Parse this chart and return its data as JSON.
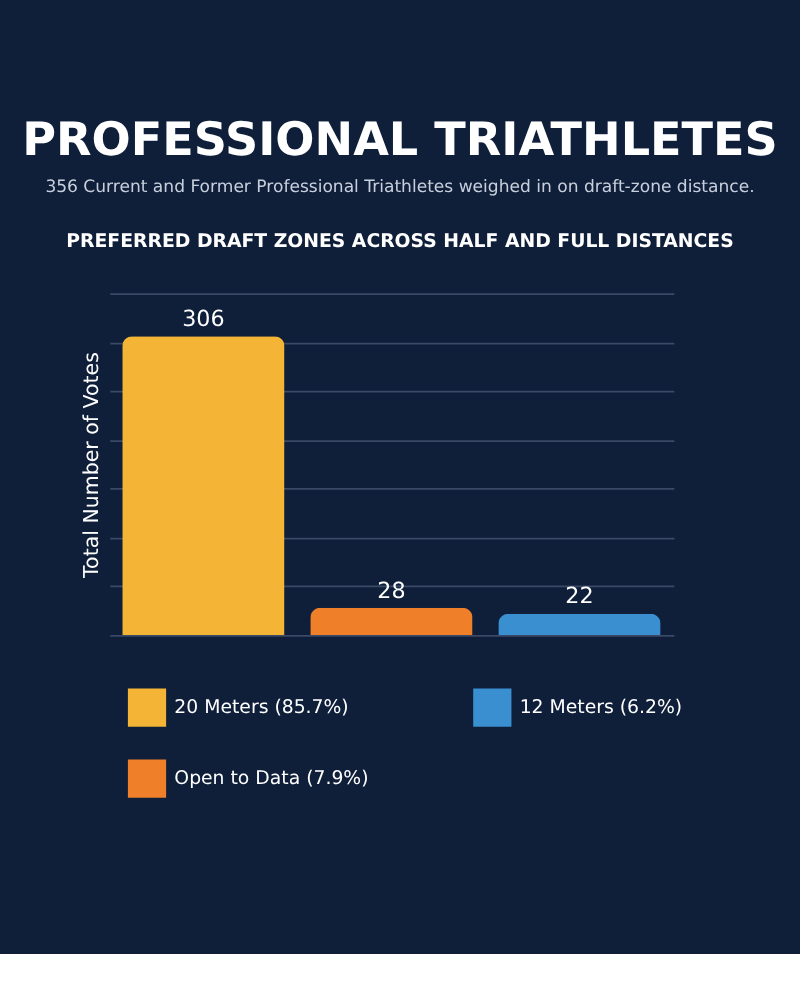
{
  "chart_data": {
    "type": "bar",
    "title": "PROFESSIONAL TRIATHLETES",
    "subtitle": "356 Current and Former Professional Triathletes weighed in on draft-zone distance.",
    "annotations": [
      "PREFERRED DRAFT ZONES ACROSS HALF AND FULL DISTANCES"
    ],
    "ylabel": "Total Number of Votes",
    "categories": [
      null,
      null,
      null
    ],
    "series": [
      {
        "name": "20 Meters (85.7%)",
        "color": "#f4b536",
        "values": [
          306,
          null,
          null
        ]
      },
      {
        "name": "12 Meters (6.2%)",
        "color": "#3a8fd0",
        "values": [
          null,
          null,
          22
        ]
      },
      {
        "name": "Open to Data (7.9%)",
        "color": "#f07f2a",
        "values": [
          null,
          28,
          null
        ]
      }
    ],
    "ylim": [
      0,
      350
    ],
    "yticks": [
      {
        "value": 0,
        "label": null
      },
      {
        "value": 50,
        "label": null
      },
      {
        "value": 100,
        "label": null
      },
      {
        "value": 150,
        "label": null
      },
      {
        "value": 200,
        "label": null
      },
      {
        "value": 250,
        "label": null
      },
      {
        "value": 300,
        "label": null
      },
      {
        "value": 350,
        "label": null
      }
    ],
    "stacked": true,
    "grid": "y",
    "tick_labels": false,
    "data_labels": true,
    "legend": "bottom"
  }
}
